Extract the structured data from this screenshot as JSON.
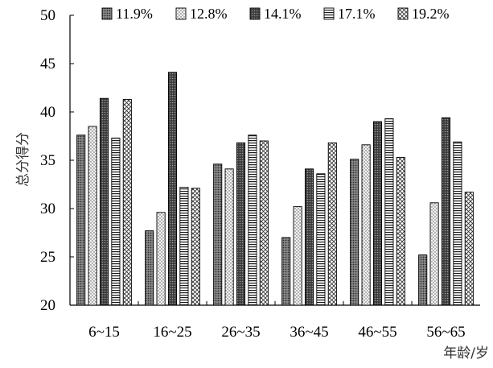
{
  "chart_data": {
    "type": "bar",
    "title": "",
    "xlabel": "年龄/岁",
    "ylabel": "总分得分",
    "ylim": [
      20,
      50
    ],
    "yticks": [
      "20",
      "25",
      "30",
      "35",
      "40",
      "45",
      "50"
    ],
    "categories": [
      "6~15",
      "16~25",
      "26~35",
      "36~45",
      "46~55",
      "56~65"
    ],
    "series": [
      {
        "name": "11.9%",
        "values": [
          37.6,
          27.7,
          34.6,
          27.0,
          35.1,
          25.2
        ],
        "pattern": "dots-dense"
      },
      {
        "name": "12.8%",
        "values": [
          38.5,
          29.6,
          34.1,
          30.2,
          36.6,
          30.6
        ],
        "pattern": "dots-light"
      },
      {
        "name": "14.1%",
        "values": [
          41.4,
          44.1,
          36.8,
          34.1,
          39.0,
          39.4
        ],
        "pattern": "dots-dark"
      },
      {
        "name": "17.1%",
        "values": [
          37.3,
          32.2,
          37.6,
          33.6,
          39.3,
          36.9
        ],
        "pattern": "hlines"
      },
      {
        "name": "19.2%",
        "values": [
          41.3,
          32.1,
          37.0,
          36.8,
          35.3,
          31.7
        ],
        "pattern": "crosshatch"
      }
    ],
    "legend_position": "top",
    "grid": false
  }
}
